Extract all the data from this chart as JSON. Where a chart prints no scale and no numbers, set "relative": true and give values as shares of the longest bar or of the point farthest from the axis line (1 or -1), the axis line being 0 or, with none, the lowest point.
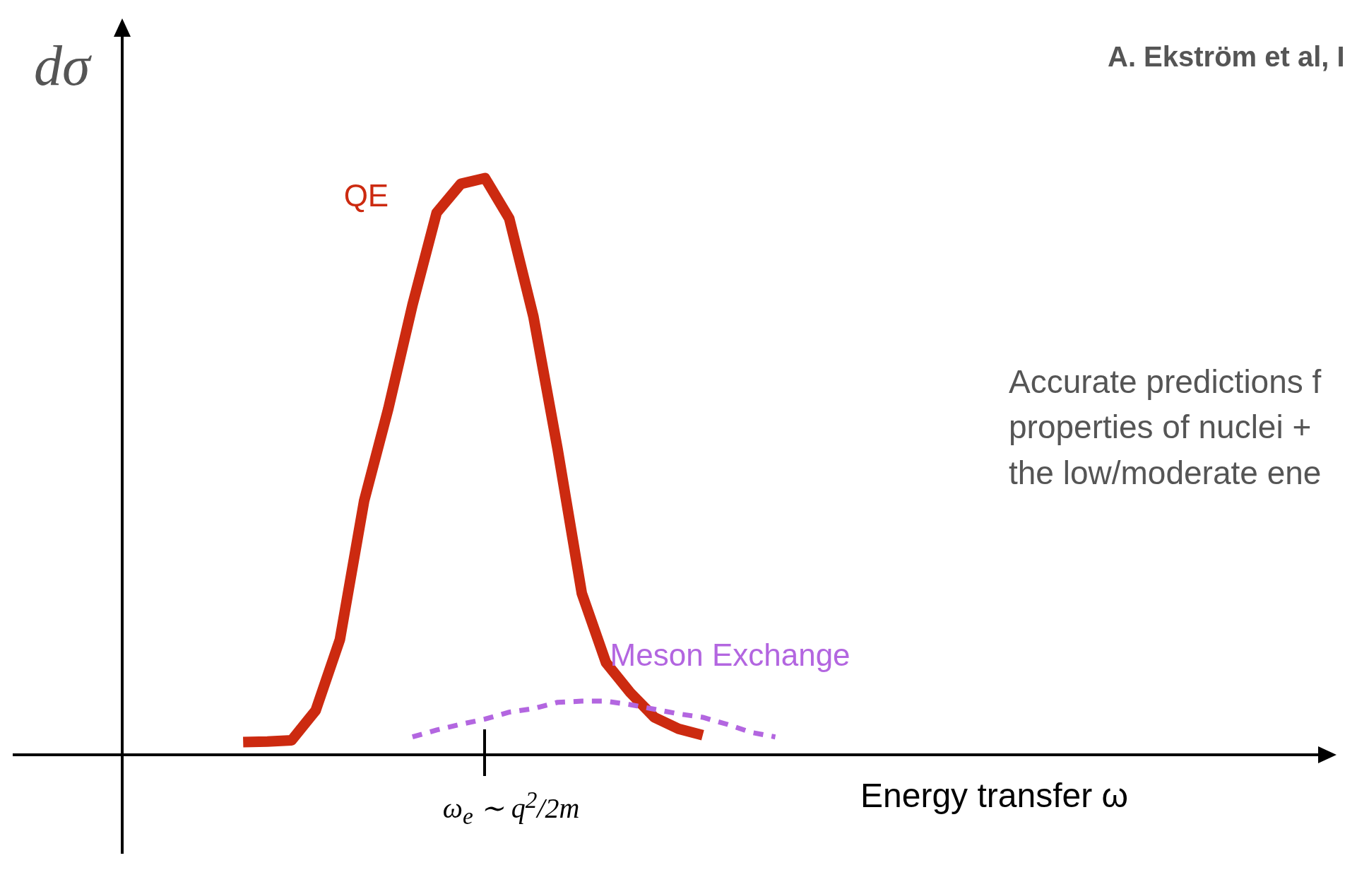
{
  "chart_data": {
    "type": "line",
    "relative": true,
    "ylabel": "dσ",
    "xlabel": "Energy transfer  ω",
    "marker": "none",
    "categories": [
      null,
      null,
      null,
      null,
      null,
      null,
      null,
      null,
      null,
      null,
      null,
      null,
      null,
      null,
      null,
      null,
      null,
      null,
      null,
      null,
      null,
      null,
      null,
      null,
      null,
      null,
      null,
      null,
      null,
      null,
      null,
      null,
      null,
      null,
      null,
      null,
      null,
      null,
      null,
      null,
      null,
      null,
      null,
      null,
      null,
      null,
      null,
      null,
      null,
      null
    ],
    "series": [
      {
        "name": "QE",
        "color": "#cc2a10",
        "line_style": "solid",
        "values": [
          null,
          null,
          null,
          null,
          null,
          0.022,
          0.023,
          0.025,
          0.077,
          0.2,
          0.44,
          0.6,
          0.78,
          0.94,
          0.99,
          1,
          0.93,
          0.76,
          0.53,
          0.28,
          0.16,
          0.108,
          0.065,
          0.045,
          0.034,
          null,
          null,
          null,
          null,
          null,
          null,
          null,
          null,
          null,
          null,
          null,
          null,
          null,
          null,
          null,
          null,
          null,
          null,
          null,
          null,
          null,
          null,
          null,
          null,
          null
        ]
      },
      {
        "name": "Meson Exchange",
        "color": "#b366e0",
        "line_style": "dashed",
        "values": [
          null,
          null,
          null,
          null,
          null,
          null,
          null,
          null,
          null,
          null,
          null,
          null,
          0.031,
          0.043,
          0.053,
          0.062,
          0.074,
          0.08,
          0.091,
          0.093,
          0.093,
          0.087,
          0.079,
          0.071,
          0.065,
          0.053,
          0.039,
          0.031,
          null,
          null,
          null,
          null,
          null,
          null,
          null,
          null,
          null,
          null,
          null,
          null,
          null,
          null,
          null,
          null,
          null,
          null,
          null,
          null,
          null,
          null
        ]
      }
    ],
    "annotations": [
      "ω$_{e}$ ∼ q$^{2}$/2m",
      "A. Ekström et al, I",
      "Accurate predictions f\nproperties of nuclei +\nthe low/moderate ene"
    ]
  }
}
